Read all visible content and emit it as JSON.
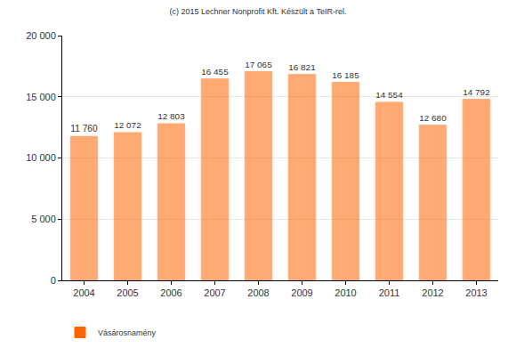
{
  "chart_data": {
    "type": "bar",
    "title": "(c) 2015 Lechner Nonprofit Kft. Készült a TeIR-rel.",
    "categories": [
      "2004",
      "2005",
      "2006",
      "2007",
      "2008",
      "2009",
      "2010",
      "2011",
      "2012",
      "2013"
    ],
    "series": [
      {
        "name": "Vásárosnamény",
        "color": "#ff6600",
        "values": [
          11760,
          12072,
          12803,
          16455,
          17065,
          16821,
          16185,
          14554,
          12680,
          14792
        ],
        "value_labels": [
          "11 760",
          "12 072",
          "12 803",
          "16 455",
          "17 065",
          "16 821",
          "16 185",
          "14 554",
          "12 680",
          "14 792"
        ]
      }
    ],
    "ylim": [
      0,
      20000
    ],
    "yticks": [
      0,
      {
        "value": 5000,
        "label": "5 000"
      },
      {
        "value": 10000,
        "label": "10 000"
      },
      {
        "value": 15000,
        "label": "15 000"
      },
      {
        "value": 20000,
        "label": "20 000"
      }
    ],
    "grid": true,
    "data_labels": true,
    "legend": "bottom-left"
  }
}
